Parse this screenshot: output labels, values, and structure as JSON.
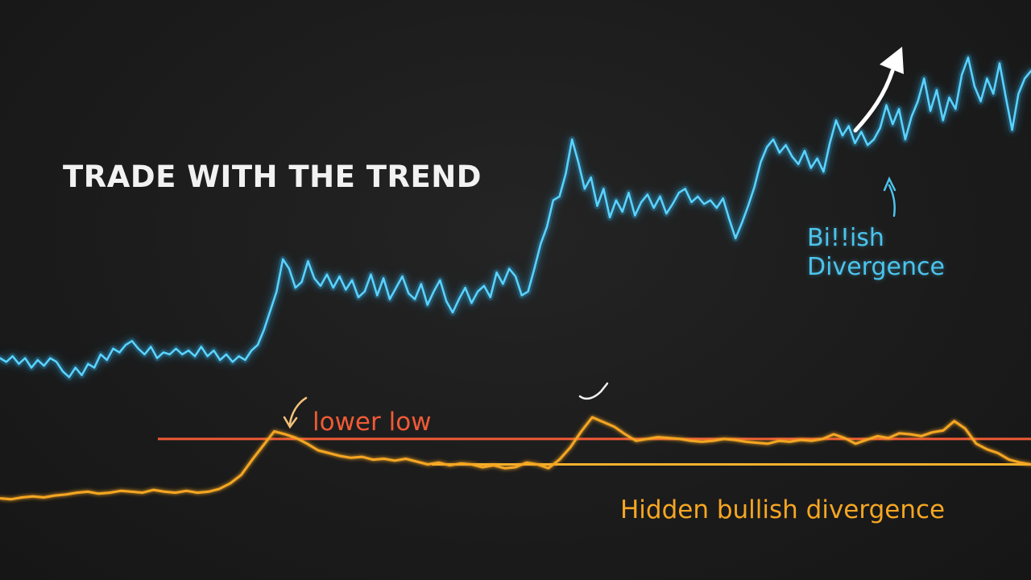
{
  "colors": {
    "background": "#1c1c1c",
    "price_line": "#5ad2ff",
    "price_glow": "#2aa8e0",
    "indicator_line": "#f5a623",
    "resistance_line": "#f05a36",
    "support_line": "#f5b12c",
    "title": "#f2f2f2",
    "arrow": "#ffffff"
  },
  "chart_data": {
    "type": "line",
    "title": "TRADE WITH THE TREND",
    "grid": false,
    "legend": "none",
    "price_series": {
      "values": [
        0.35,
        0.33,
        0.36,
        0.32,
        0.35,
        0.3,
        0.34,
        0.31,
        0.35,
        0.33,
        0.28,
        0.25,
        0.3,
        0.26,
        0.32,
        0.3,
        0.37,
        0.34,
        0.4,
        0.38,
        0.42,
        0.44,
        0.4,
        0.37,
        0.41,
        0.35,
        0.38,
        0.37,
        0.4,
        0.37,
        0.39,
        0.36,
        0.41,
        0.36,
        0.39,
        0.34,
        0.37,
        0.33,
        0.36,
        0.34,
        0.39,
        0.42,
        0.5,
        0.6,
        0.7,
        0.87,
        0.82,
        0.72,
        0.75,
        0.86,
        0.77,
        0.73,
        0.79,
        0.72,
        0.78,
        0.71,
        0.76,
        0.67,
        0.7,
        0.79,
        0.68,
        0.77,
        0.66,
        0.72,
        0.78,
        0.69,
        0.66,
        0.74,
        0.63,
        0.7,
        0.76,
        0.65,
        0.59,
        0.66,
        0.72,
        0.64,
        0.7,
        0.73,
        0.67,
        0.8,
        0.74,
        0.82,
        0.78,
        0.68,
        0.7,
        0.82,
        0.95,
        1.04,
        1.18,
        1.2,
        1.32,
        1.5,
        1.38,
        1.24,
        1.3,
        1.15,
        1.24,
        1.09,
        1.18,
        1.12,
        1.22,
        1.1,
        1.17,
        1.21,
        1.14,
        1.2,
        1.11,
        1.16,
        1.22,
        1.24,
        1.17,
        1.2,
        1.16,
        1.18,
        1.14,
        1.19,
        1.08,
        0.98,
        1.06,
        1.15,
        1.25,
        1.38,
        1.46,
        1.5,
        1.43,
        1.47,
        1.41,
        1.37,
        1.44,
        1.35,
        1.4,
        1.33,
        1.48,
        1.6,
        1.52,
        1.57,
        1.48,
        1.54,
        1.47,
        1.5,
        1.56,
        1.68,
        1.58,
        1.66,
        1.5,
        1.62,
        1.7,
        1.82,
        1.65,
        1.76,
        1.6,
        1.72,
        1.66,
        1.84,
        1.93,
        1.78,
        1.7,
        1.82,
        1.74,
        1.9,
        1.72,
        1.55,
        1.74,
        1.82,
        1.86
      ]
    },
    "indicator_series": {
      "values": [
        0.14,
        0.13,
        0.15,
        0.16,
        0.15,
        0.17,
        0.18,
        0.2,
        0.21,
        0.19,
        0.2,
        0.22,
        0.21,
        0.2,
        0.23,
        0.21,
        0.2,
        0.22,
        0.2,
        0.21,
        0.24,
        0.3,
        0.39,
        0.55,
        0.7,
        0.85,
        0.82,
        0.78,
        0.72,
        0.65,
        0.62,
        0.59,
        0.57,
        0.58,
        0.55,
        0.56,
        0.54,
        0.56,
        0.53,
        0.5,
        0.52,
        0.49,
        0.51,
        0.5,
        0.47,
        0.49,
        0.46,
        0.47,
        0.52,
        0.5,
        0.46,
        0.55,
        0.68,
        0.85,
        1.0,
        0.95,
        0.9,
        0.82,
        0.75,
        0.77,
        0.79,
        0.78,
        0.77,
        0.75,
        0.74,
        0.75,
        0.77,
        0.76,
        0.74,
        0.73,
        0.72,
        0.75,
        0.74,
        0.76,
        0.75,
        0.77,
        0.82,
        0.78,
        0.72,
        0.76,
        0.8,
        0.78,
        0.83,
        0.82,
        0.8,
        0.84,
        0.86,
        0.96,
        0.88,
        0.72,
        0.66,
        0.62,
        0.55,
        0.52,
        0.5
      ]
    },
    "reference_lines": [
      {
        "role": "resistance",
        "value": 0.77
      },
      {
        "role": "support",
        "value": 0.5
      }
    ],
    "annotations": {
      "bullish": "Bi!!ish\nDivergence",
      "lower_low": "lower low",
      "hidden": "Hidden bullish divergence"
    }
  },
  "icons": {
    "trend_arrow": "arrow-up-right-icon",
    "bullish_pointer": "arrow-up-icon",
    "lower_low_pointer": "arrow-down-right-icon",
    "peak_marker": "arrow-curve-icon"
  }
}
